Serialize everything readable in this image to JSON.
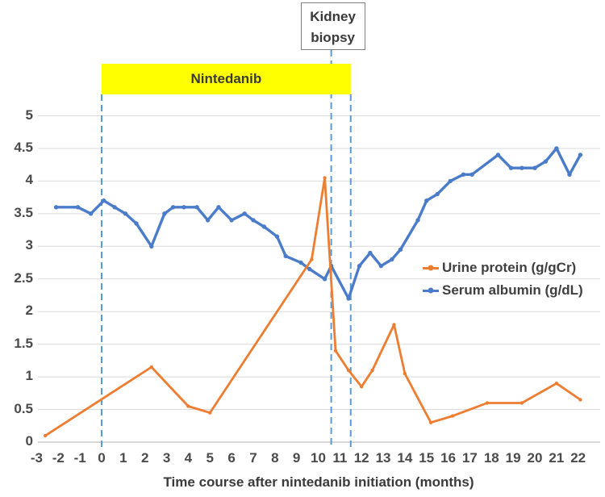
{
  "chart_data": {
    "type": "line",
    "title": "",
    "xlabel": "Time course after nintedanib initiation (months)",
    "ylabel": "",
    "xlim": [
      -3,
      23
    ],
    "ylim": [
      0,
      5
    ],
    "grid": "horizontal",
    "legend_position": "middle-right",
    "x_ticks": [
      -3,
      -2,
      -1,
      0,
      1,
      2,
      3,
      4,
      5,
      6,
      7,
      8,
      9,
      10,
      11,
      12,
      13,
      14,
      15,
      16,
      17,
      18,
      19,
      20,
      21,
      22
    ],
    "y_ticks": [
      0,
      0.5,
      1,
      1.5,
      2,
      2.5,
      3,
      3.5,
      4,
      4.5,
      5
    ],
    "series": [
      {
        "name": "Urine protein (g/gCr)",
        "color": "#ED7D31",
        "points": [
          [
            -2.6,
            0.1
          ],
          [
            2.3,
            1.15
          ],
          [
            4.0,
            0.55
          ],
          [
            5.0,
            0.45
          ],
          [
            9.7,
            2.8
          ],
          [
            10.3,
            4.05
          ],
          [
            10.8,
            1.4
          ],
          [
            11.4,
            1.1
          ],
          [
            12.0,
            0.85
          ],
          [
            12.5,
            1.1
          ],
          [
            13.5,
            1.8
          ],
          [
            14.0,
            1.05
          ],
          [
            15.2,
            0.3
          ],
          [
            16.2,
            0.4
          ],
          [
            17.8,
            0.6
          ],
          [
            19.4,
            0.6
          ],
          [
            21.0,
            0.9
          ],
          [
            22.1,
            0.65
          ]
        ]
      },
      {
        "name": "Serum albumin (g/dL)",
        "color": "#4A7CC9",
        "points": [
          [
            -2.1,
            3.6
          ],
          [
            -1.1,
            3.6
          ],
          [
            -0.5,
            3.5
          ],
          [
            0.1,
            3.7
          ],
          [
            0.6,
            3.6
          ],
          [
            1.1,
            3.5
          ],
          [
            1.6,
            3.35
          ],
          [
            2.3,
            3.0
          ],
          [
            2.9,
            3.5
          ],
          [
            3.3,
            3.6
          ],
          [
            3.8,
            3.6
          ],
          [
            4.4,
            3.6
          ],
          [
            4.9,
            3.4
          ],
          [
            5.4,
            3.6
          ],
          [
            6.0,
            3.4
          ],
          [
            6.6,
            3.5
          ],
          [
            7.0,
            3.4
          ],
          [
            7.5,
            3.3
          ],
          [
            8.1,
            3.15
          ],
          [
            8.5,
            2.85
          ],
          [
            9.2,
            2.75
          ],
          [
            9.6,
            2.65
          ],
          [
            10.3,
            2.5
          ],
          [
            10.6,
            2.7
          ],
          [
            11.4,
            2.2
          ],
          [
            11.9,
            2.7
          ],
          [
            12.4,
            2.9
          ],
          [
            12.9,
            2.7
          ],
          [
            13.4,
            2.8
          ],
          [
            13.8,
            2.95
          ],
          [
            14.6,
            3.4
          ],
          [
            15.0,
            3.7
          ],
          [
            15.5,
            3.8
          ],
          [
            16.1,
            4.0
          ],
          [
            16.7,
            4.1
          ],
          [
            17.1,
            4.1
          ],
          [
            18.3,
            4.4
          ],
          [
            18.9,
            4.2
          ],
          [
            19.4,
            4.2
          ],
          [
            20.0,
            4.2
          ],
          [
            20.5,
            4.3
          ],
          [
            21.0,
            4.5
          ],
          [
            21.6,
            4.1
          ],
          [
            22.1,
            4.4
          ]
        ]
      }
    ],
    "annotations": {
      "nintedanib_bar": {
        "label": "Nintedanib",
        "x_start": 0,
        "x_end": 11.5,
        "color": "#FFFF00"
      },
      "kidney_biopsy": {
        "label": "Kidney biopsy",
        "x": 10.6
      },
      "dashed_lines_x": [
        0,
        10.6,
        11.5
      ],
      "dashed_color": "#5B9BD5",
      "gridline_color": "#D9D9D9",
      "axis_line_color": "#BFBFBF"
    }
  }
}
